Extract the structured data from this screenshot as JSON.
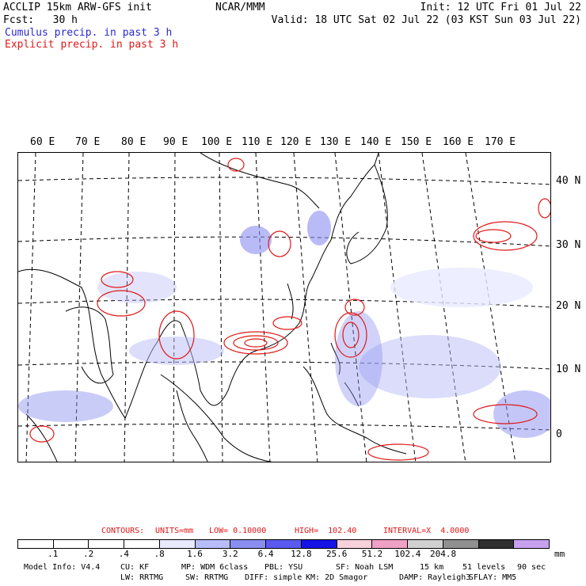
{
  "header": {
    "model": "ACCLIP 15km ARW-GFS init",
    "fcst": "Fcst:   30 h",
    "org": "NCAR/MMM",
    "init": "Init: 12 UTC Fri 01 Jul 22",
    "valid": "Valid: 18 UTC Sat 02 Jul 22 (03 KST Sun 03 Jul 22)",
    "cumulus": "Cumulus precip. in past 3 h",
    "explicit": "Explicit precip. in past 3 h"
  },
  "colors": {
    "cumulus": "#2a2ad0",
    "explicit": "#e01818"
  },
  "map": {
    "lon_labels": [
      "60 E",
      "70 E",
      "80 E",
      "90 E",
      "100 E",
      "110 E",
      "120 E",
      "130 E",
      "140 E",
      "150 E",
      "160 E",
      "170 E"
    ],
    "lat_labels": [
      "40 N",
      "30 N",
      "20 N",
      "10 N",
      "0"
    ]
  },
  "contours": {
    "label": "CONTOURS:",
    "units": "UNITS=mm",
    "low": "LOW= 0.10000",
    "high": "HIGH=  102.40",
    "interval": "INTERVAL=X  4.0000"
  },
  "legend": {
    "swatches": [
      "#ffffff",
      "#ffffff",
      "#ffffff",
      "#ffffff",
      "#e8eaff",
      "#b8bcf8",
      "#8a8ef0",
      "#5a5af0",
      "#1414e6",
      "#f8d2da",
      "#f0a0c4",
      "#d0d0d0",
      "#909090",
      "#303030",
      "#c8a0f0"
    ],
    "levels": [
      ".1",
      ".2",
      ".4",
      ".8",
      "1.6",
      "3.2",
      "6.4",
      "12.8",
      "25.6",
      "51.2",
      "102.4",
      "204.8"
    ],
    "unit": "mm"
  },
  "footer": {
    "line1": [
      "Model Info: V4.4",
      "CU: KF",
      "MP: WDM 6class",
      "PBL: YSU",
      "SF: Noah LSM",
      "15 km",
      "51 levels",
      "90 sec"
    ],
    "line2": [
      "LW: RRTMG",
      "SW: RRTMG",
      "DIFF: simple",
      "KM: 2D Smagor",
      "DAMP: Rayleigh3",
      "SFLAY: MM5"
    ]
  }
}
